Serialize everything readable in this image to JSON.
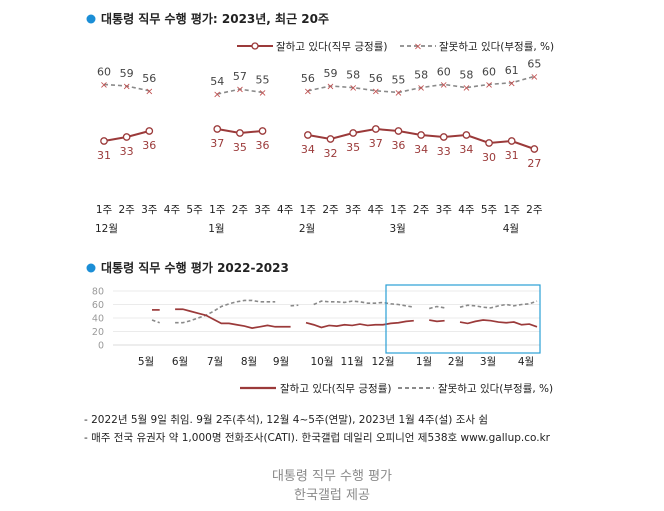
{
  "colors": {
    "approve": "#9b3a3a",
    "disapprove": "#8a8a8a",
    "bullet": "#1b8ed6",
    "highlight": "#2a9fd6"
  },
  "chart_data": [
    {
      "type": "line",
      "title": "대통령 직무 수행 평가: 2023년, 최근 20주",
      "categories": [
        "1주",
        "2주",
        "3주",
        "4주",
        "5주",
        "1주",
        "2주",
        "3주",
        "4주",
        "1주",
        "2주",
        "3주",
        "4주",
        "1주",
        "2주",
        "3주",
        "4주",
        "5주",
        "1주",
        "2주"
      ],
      "month_labels": [
        {
          "label": "12월",
          "index": 0
        },
        {
          "label": "1월",
          "index": 5
        },
        {
          "label": "2월",
          "index": 9
        },
        {
          "label": "3월",
          "index": 13
        },
        {
          "label": "4월",
          "index": 18
        }
      ],
      "series": [
        {
          "name": "잘하고 있다(직무 긍정률)",
          "values": [
            31,
            33,
            36,
            null,
            null,
            37,
            35,
            36,
            null,
            34,
            32,
            35,
            37,
            36,
            34,
            33,
            34,
            30,
            31,
            27
          ]
        },
        {
          "name": "잘못하고 있다(부정률, %)",
          "values": [
            60,
            59,
            56,
            null,
            null,
            54,
            57,
            55,
            null,
            56,
            59,
            58,
            56,
            55,
            58,
            60,
            58,
            60,
            61,
            65
          ]
        }
      ]
    },
    {
      "type": "line",
      "title": "대통령 직무 수행 평가 2022-2023",
      "y_ticks": [
        0,
        20,
        40,
        60,
        80
      ],
      "ylim": [
        0,
        80
      ],
      "month_labels": [
        "5월",
        "6월",
        "7월",
        "8월",
        "9월",
        "10월",
        "11월",
        "12월",
        "1월",
        "2월",
        "3월",
        "4월"
      ],
      "legend_position": "bottom-right",
      "series": [
        {
          "name": "잘하고 있다(직무 긍정률)",
          "values": [
            52,
            52,
            null,
            53,
            53,
            50,
            47,
            44,
            38,
            32,
            32,
            30,
            28,
            25,
            27,
            29,
            27,
            27,
            27,
            null,
            33,
            30,
            26,
            29,
            28,
            30,
            29,
            31,
            29,
            30,
            30,
            32,
            33,
            35,
            36,
            null,
            37,
            35,
            36,
            null,
            34,
            32,
            35,
            37,
            36,
            34,
            33,
            34,
            30,
            31,
            27
          ]
        },
        {
          "name": "잘못하고 있다(부정률, %)",
          "values": [
            37,
            33,
            null,
            33,
            33,
            36,
            40,
            44,
            50,
            57,
            61,
            64,
            66,
            66,
            64,
            64,
            64,
            null,
            58,
            59,
            null,
            60,
            65,
            64,
            64,
            63,
            65,
            64,
            62,
            62,
            63,
            61,
            60,
            58,
            56,
            null,
            54,
            57,
            55,
            null,
            56,
            59,
            58,
            56,
            55,
            58,
            60,
            58,
            60,
            61,
            65
          ]
        }
      ]
    }
  ],
  "legend": {
    "approve": "잘하고 있다(직무 긍정률)",
    "disapprove": "잘못하고 있다(부정률, %)"
  },
  "notes": [
    "- 2022년 5월 9일 취임. 9월 2주(추석), 12월 4~5주(연말), 2023년 1월 4주(설) 조사 쉼",
    "- 매주 전국 유권자 약 1,000명 전화조사(CATI). 한국갤럽 데일리 오피니언 제538호 www.gallup.co.kr"
  ],
  "caption": {
    "line1": "대통령 직무 수행 평가",
    "line2": "한국갤럽 제공"
  }
}
